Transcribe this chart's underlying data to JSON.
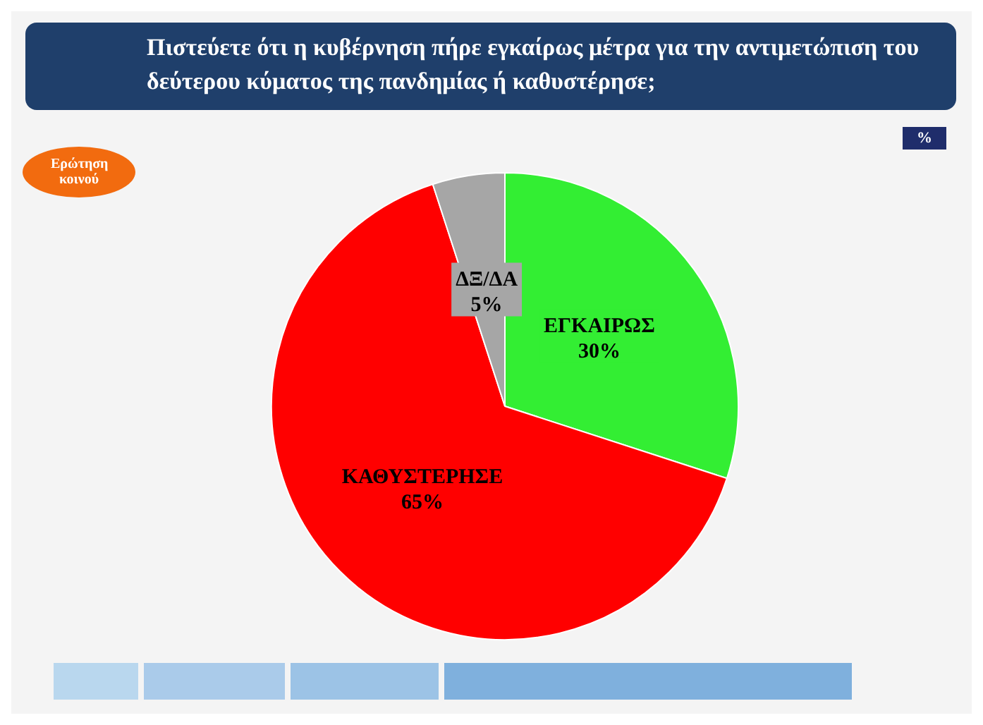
{
  "chart_data": {
    "type": "pie",
    "title": "Πιστεύετε ότι η κυβέρνηση πήρε εγκαίρως μέτρα για την αντιμετώπιση του δεύτερου κύματος της πανδημίας ή καθυστέρησε;",
    "annotations": [
      "Ερώτηση κοινού",
      "%"
    ],
    "categories": [
      "ΕΓΚΑΙΡΩΣ",
      "ΚΑΘΥΣΤΕΡΗΣΕ",
      "ΔΞ/ΔΑ"
    ],
    "values": [
      30,
      65,
      5
    ],
    "value_labels": [
      "30%",
      "65%",
      "5%"
    ],
    "colors": [
      "#33ee33",
      "#ff0000",
      "#a6a6a6"
    ],
    "legend": false
  }
}
